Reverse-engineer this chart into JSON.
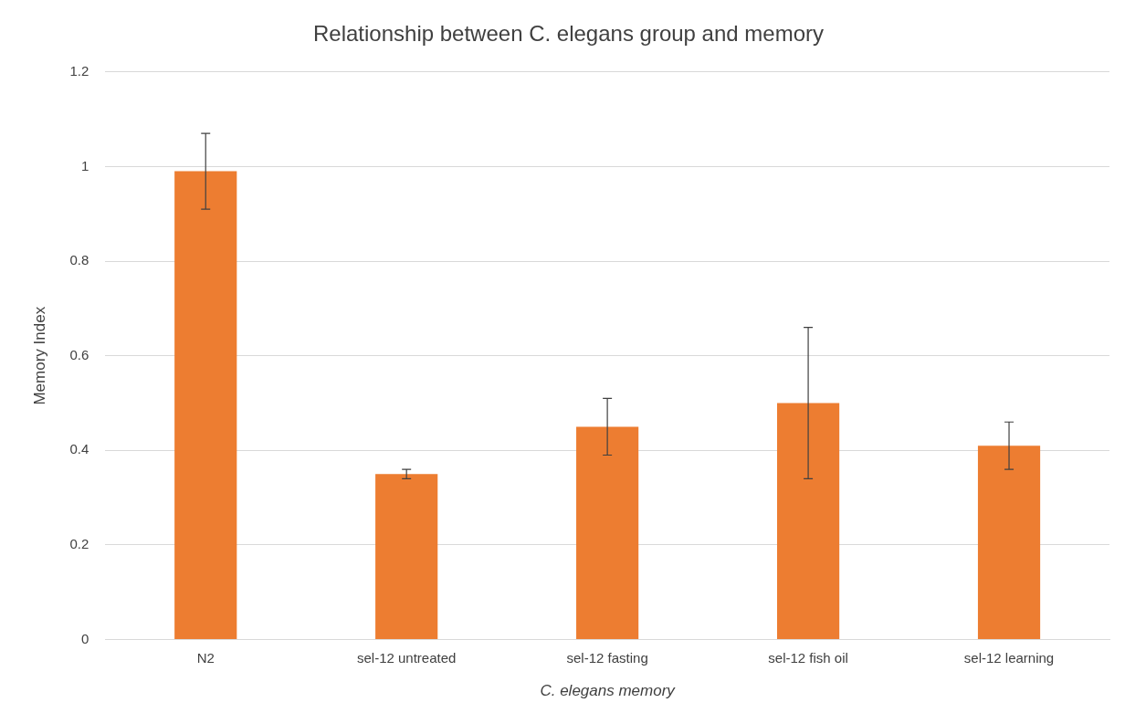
{
  "chart_data": {
    "type": "bar",
    "title": "Relationship between C. elegans group and memory",
    "xlabel": "C. elegans memory",
    "ylabel": "Memory Index",
    "categories": [
      "N2",
      "sel-12 untreated",
      "sel-12 fasting",
      "sel-12 fish oil",
      "sel-12 learning"
    ],
    "values": [
      0.99,
      0.35,
      0.45,
      0.5,
      0.41
    ],
    "errors": [
      0.08,
      0.01,
      0.06,
      0.16,
      0.05
    ],
    "color": "#ed7d31",
    "ylim": [
      0,
      1.2
    ],
    "yticks": [
      0,
      0.2,
      0.4,
      0.6,
      0.8,
      1,
      1.2
    ],
    "grid": "y",
    "legend": false
  }
}
